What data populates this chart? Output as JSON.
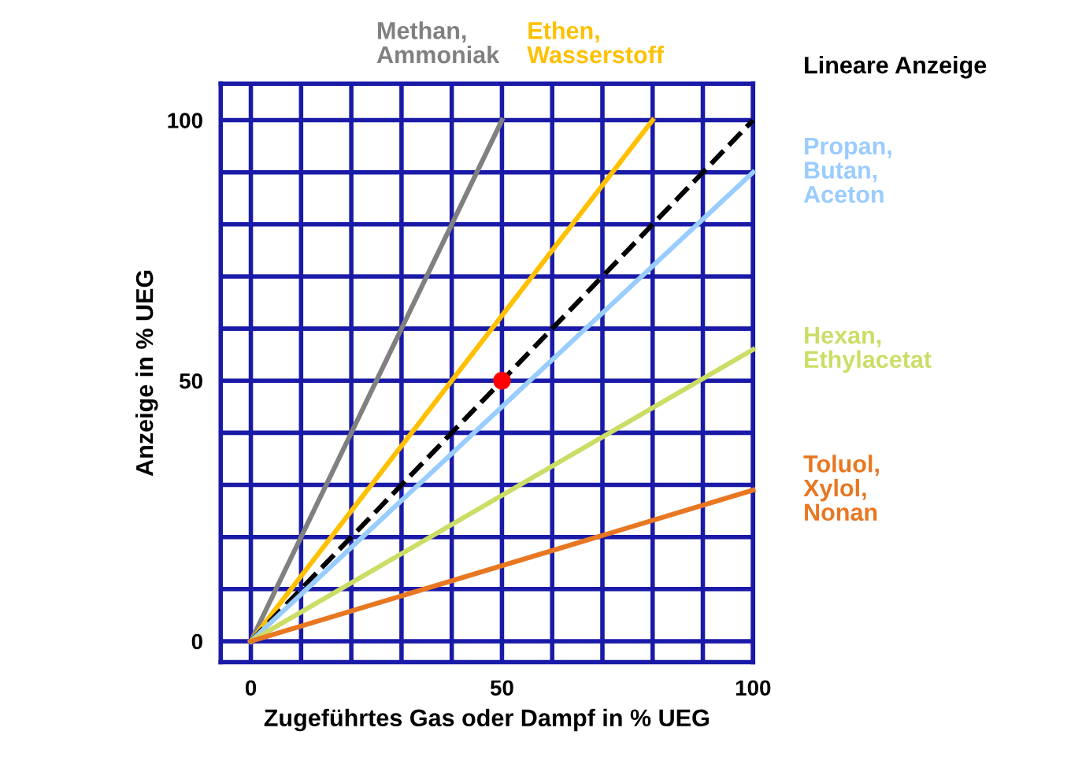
{
  "chart_data": {
    "type": "line",
    "xlabel": "Zugeführtes Gas oder Dampf in % UEG",
    "ylabel": "Anzeige in % UEG",
    "xlim": [
      -6,
      100
    ],
    "ylim": [
      -4,
      107
    ],
    "xticks": [
      0,
      {
        "value": 10,
        "label": null
      },
      {
        "value": 20,
        "label": null
      },
      {
        "value": 30,
        "label": null
      },
      {
        "value": 40,
        "label": null
      },
      50,
      {
        "value": 60,
        "label": null
      },
      {
        "value": 70,
        "label": null
      },
      {
        "value": 80,
        "label": null
      },
      {
        "value": 90,
        "label": null
      },
      100
    ],
    "yticks": [
      0,
      {
        "value": 10,
        "label": null
      },
      {
        "value": 20,
        "label": null
      },
      {
        "value": 30,
        "label": null
      },
      {
        "value": 40,
        "label": null
      },
      50,
      {
        "value": 60,
        "label": null
      },
      {
        "value": 70,
        "label": null
      },
      {
        "value": 80,
        "label": null
      },
      {
        "value": 90,
        "label": null
      },
      100
    ],
    "grid": true,
    "marker": "none",
    "legend": false,
    "series": [
      {
        "name": "Methan,\nAmmoniak",
        "color": "#808080",
        "x": [
          0,
          50
        ],
        "values": [
          0,
          100
        ]
      },
      {
        "name": "Ethen,\nWasserstoff",
        "color": "#ffc000",
        "x": [
          0,
          80
        ],
        "values": [
          0,
          100
        ]
      },
      {
        "name": "Lineare Anzeige",
        "color": "#000000",
        "line_style": "dashed",
        "x": [
          0,
          100
        ],
        "values": [
          0,
          100
        ]
      },
      {
        "name": "Propan,\nButan,\nAceton",
        "color": "#99ccff",
        "x": [
          0,
          100
        ],
        "values": [
          0,
          90
        ]
      },
      {
        "name": "Hexan,\nEthylacetat",
        "color": "#ccdd66",
        "x": [
          0,
          100
        ],
        "values": [
          0,
          56
        ]
      },
      {
        "name": "Toluol,\nXylol,\nNonan",
        "color": "#e87722",
        "x": [
          0,
          100
        ],
        "values": [
          0,
          29
        ]
      },
      {
        "type": "scatter",
        "color": "#ff0000",
        "marker": "circle",
        "x": [
          50
        ],
        "values": [
          50
        ]
      }
    ]
  }
}
